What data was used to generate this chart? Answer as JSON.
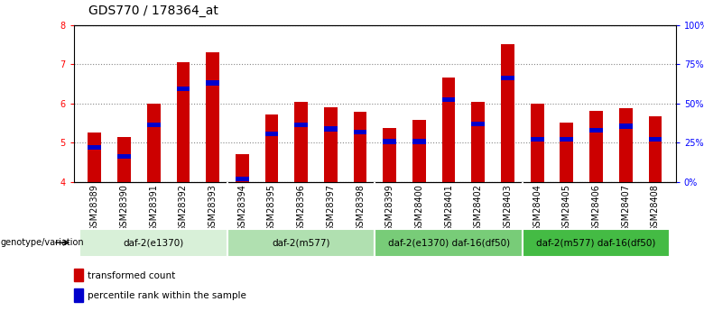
{
  "title": "GDS770 / 178364_at",
  "samples": [
    "GSM28389",
    "GSM28390",
    "GSM28391",
    "GSM28392",
    "GSM28393",
    "GSM28394",
    "GSM28395",
    "GSM28396",
    "GSM28397",
    "GSM28398",
    "GSM28399",
    "GSM28400",
    "GSM28401",
    "GSM28402",
    "GSM28403",
    "GSM28404",
    "GSM28405",
    "GSM28406",
    "GSM28407",
    "GSM28408"
  ],
  "bar_values": [
    5.25,
    5.15,
    6.0,
    7.05,
    7.3,
    4.7,
    5.72,
    6.05,
    5.9,
    5.78,
    5.37,
    5.57,
    6.65,
    6.05,
    7.5,
    6.0,
    5.52,
    5.8,
    5.88,
    5.68
  ],
  "blue_positions": [
    4.88,
    4.65,
    5.45,
    6.38,
    6.52,
    4.08,
    5.22,
    5.45,
    5.35,
    5.27,
    5.03,
    5.03,
    6.1,
    5.47,
    6.65,
    5.08,
    5.08,
    5.32,
    5.42,
    5.08
  ],
  "groups": [
    {
      "label": "daf-2(e1370)",
      "start": 0,
      "end": 5
    },
    {
      "label": "daf-2(m577)",
      "start": 5,
      "end": 10
    },
    {
      "label": "daf-2(e1370) daf-16(df50)",
      "start": 10,
      "end": 15
    },
    {
      "label": "daf-2(m577) daf-16(df50)",
      "start": 15,
      "end": 20
    }
  ],
  "group_bg_colors": [
    "#d8f0d8",
    "#b0e0b0",
    "#78cc78",
    "#44bb44"
  ],
  "ylim_left": [
    4,
    8
  ],
  "ylim_right": [
    0,
    100
  ],
  "yticks_left": [
    4,
    5,
    6,
    7,
    8
  ],
  "yticks_right": [
    0,
    25,
    50,
    75,
    100
  ],
  "bar_color": "#cc0000",
  "blue_color": "#0000cc",
  "bar_width": 0.45,
  "legend_red": "transformed count",
  "legend_blue": "percentile rank within the sample",
  "genotype_label": "genotype/variation",
  "title_fontsize": 10,
  "tick_fontsize": 7,
  "group_fontsize": 7.5,
  "legend_fontsize": 7.5
}
